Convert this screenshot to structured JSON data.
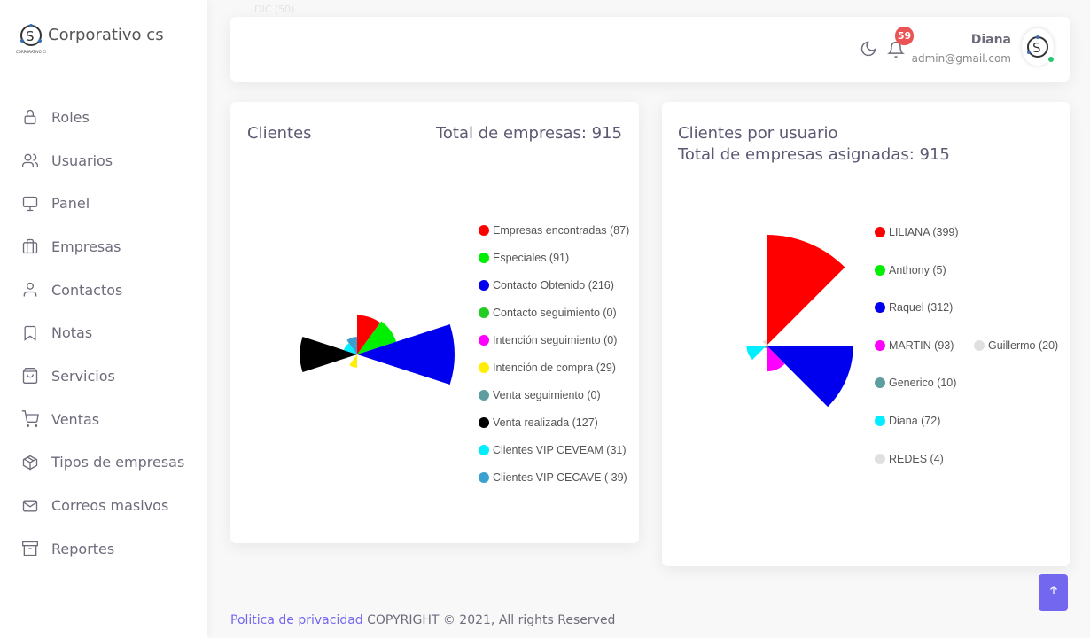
{
  "brand": {
    "name": "Corporativo cs",
    "logo_text": "CORPORATIVO CS"
  },
  "sidebar": {
    "items": [
      {
        "label": "Roles",
        "icon": "lock-icon"
      },
      {
        "label": "Usuarios",
        "icon": "users-icon"
      },
      {
        "label": "Panel",
        "icon": "monitor-icon"
      },
      {
        "label": "Empresas",
        "icon": "briefcase-icon"
      },
      {
        "label": "Contactos",
        "icon": "user-icon"
      },
      {
        "label": "Notas",
        "icon": "bookmark-icon"
      },
      {
        "label": "Servicios",
        "icon": "shopping-bag-icon"
      },
      {
        "label": "Ventas",
        "icon": "shopping-cart-icon"
      },
      {
        "label": "Tipos de empresas",
        "icon": "package-icon"
      },
      {
        "label": "Correos masivos",
        "icon": "mail-icon"
      },
      {
        "label": "Reportes",
        "icon": "archive-icon"
      }
    ]
  },
  "header": {
    "ghost_text": "DIC (50)",
    "notifications": "59",
    "user_name": "Diana",
    "user_email": "admin@gmail.com"
  },
  "chart_data": [
    {
      "type": "polarArea",
      "title": "Clientes",
      "subtitle": "Total de empresas: 915",
      "legend_position": "right",
      "categories": [
        "Empresas encontradas (87)",
        "Especiales (91)",
        "Contacto Obtenido (216)",
        "Contacto seguimiento (0)",
        "Intención seguimiento (0)",
        "Intención de compra (29)",
        "Venta seguimiento (0)",
        "Venta realizada (127)",
        "Clientes VIP CEVEAM (31)",
        "Clientes VIP CECAVE ( 39)"
      ],
      "values": [
        87,
        91,
        216,
        0,
        0,
        29,
        0,
        127,
        31,
        39
      ],
      "colors": [
        "#ff0000",
        "#00ee00",
        "#0000ee",
        "#22cc22",
        "#ff00ff",
        "#ffee00",
        "#5f9ea0",
        "#000000",
        "#00eeff",
        "#3aa0d0"
      ]
    },
    {
      "type": "polarArea",
      "title": "Clientes por usuario",
      "subtitle": "Total de empresas asignadas: 915",
      "legend_position": "right",
      "categories": [
        "LILIANA (399)",
        "Anthony (5)",
        "Raquel (312)",
        "MARTIN (93)",
        "Generico (10)",
        "Diana (72)",
        "REDES (4)",
        "Guillermo (20)"
      ],
      "values": [
        399,
        5,
        312,
        93,
        10,
        72,
        4,
        20
      ],
      "colors": [
        "#ff0000",
        "#00ee00",
        "#0000ee",
        "#ff00ff",
        "#5f9ea0",
        "#00eeff",
        "#e0e0e0",
        "#e0e0e0"
      ]
    }
  ],
  "footer": {
    "privacy_link": "Politica de privacidad",
    "copyright": " COPYRIGHT © 2021, All rights Reserved"
  },
  "scroll_top_icon": "arrow-up-icon"
}
